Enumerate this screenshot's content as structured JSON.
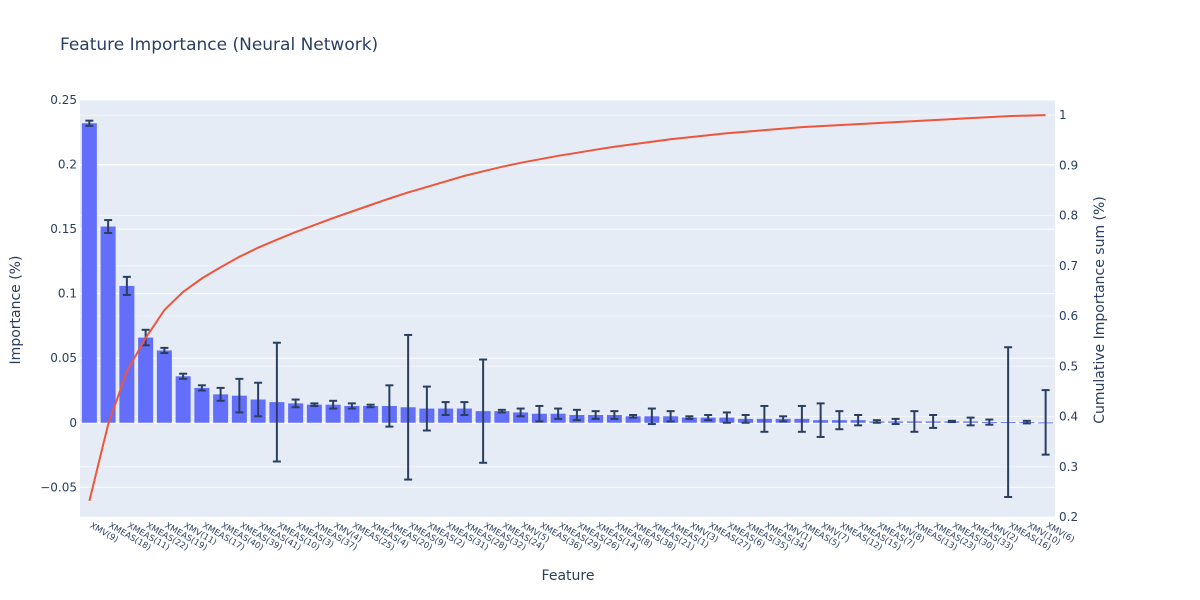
{
  "chart_data": {
    "type": "bar",
    "title": "Feature Importance (Neural Network)",
    "xlabel": "Feature",
    "ylabel": "Importance (%)",
    "y2label": "Cumulative Importance sum (%)",
    "ylim": [
      -0.073,
      0.25
    ],
    "y2lim": [
      0.2,
      1.03
    ],
    "yticks": [
      -0.05,
      0,
      0.05,
      0.1,
      0.15,
      0.2,
      0.25
    ],
    "ytick_labels": [
      "−0.05",
      "0",
      "0.05",
      "0.1",
      "0.15",
      "0.2",
      "0.25"
    ],
    "y2ticks": [
      0.2,
      0.3,
      0.4,
      0.5,
      0.6,
      0.7,
      0.8,
      0.9,
      1
    ],
    "y2tick_labels": [
      "0.2",
      "0.3",
      "0.4",
      "0.5",
      "0.6",
      "0.7",
      "0.8",
      "0.9",
      "1"
    ],
    "grid": true,
    "categories": [
      "XMV(9)",
      "XMEAS(18)",
      "XMEAS(11)",
      "XMEAS(22)",
      "XMEAS(19)",
      "XMV(11)",
      "XMEAS(17)",
      "XMEAS(40)",
      "XMEAS(39)",
      "XMEAS(41)",
      "XMEAS(10)",
      "XMEAS(3)",
      "XMEAS(37)",
      "XMV(4)",
      "XMEAS(25)",
      "XMEAS(4)",
      "XMEAS(20)",
      "XMEAS(9)",
      "XMEAS(2)",
      "XMEAS(31)",
      "XMEAS(28)",
      "XMEAS(32)",
      "XMEAS(24)",
      "XMV(5)",
      "XMEAS(36)",
      "XMEAS(29)",
      "XMEAS(26)",
      "XMEAS(14)",
      "XMEAS(8)",
      "XMEAS(38)",
      "XMEAS(21)",
      "XMEAS(1)",
      "XMV(3)",
      "XMEAS(27)",
      "XMEAS(6)",
      "XMEAS(35)",
      "XMEAS(34)",
      "XMV(1)",
      "XMEAS(5)",
      "XMV(7)",
      "XMEAS(12)",
      "XMEAS(15)",
      "XMEAS(7)",
      "XMV(8)",
      "XMEAS(13)",
      "XMEAS(23)",
      "XMEAS(30)",
      "XMEAS(33)",
      "XMV(2)",
      "XMEAS(16)",
      "XMV(10)",
      "XMV(6)"
    ],
    "series": [
      {
        "type": "bar",
        "color": "#636efa",
        "values": [
          0.232,
          0.152,
          0.106,
          0.066,
          0.056,
          0.036,
          0.027,
          0.022,
          0.021,
          0.018,
          0.016,
          0.015,
          0.014,
          0.014,
          0.013,
          0.013,
          0.013,
          0.012,
          0.011,
          0.011,
          0.011,
          0.009,
          0.009,
          0.008,
          0.007,
          0.007,
          0.006,
          0.006,
          0.006,
          0.005,
          0.005,
          0.005,
          0.004,
          0.004,
          0.004,
          0.003,
          0.003,
          0.003,
          0.003,
          0.002,
          0.002,
          0.002,
          0.001,
          0.001,
          0.001,
          0.001,
          0.001,
          0.001,
          0.0005,
          0.0005,
          0.0005,
          0.0003
        ],
        "error": [
          0.002,
          0.005,
          0.007,
          0.006,
          0.002,
          0.002,
          0.002,
          0.005,
          0.013,
          0.013,
          0.046,
          0.003,
          0.001,
          0.003,
          0.002,
          0.001,
          0.016,
          0.056,
          0.017,
          0.005,
          0.005,
          0.04,
          0.001,
          0.003,
          0.006,
          0.004,
          0.004,
          0.003,
          0.003,
          0.001,
          0.006,
          0.004,
          0.001,
          0.002,
          0.004,
          0.003,
          0.01,
          0.002,
          0.01,
          0.013,
          0.007,
          0.004,
          0.001,
          0.002,
          0.008,
          0.005,
          0.0005,
          0.003,
          0.002,
          0.058,
          0.001,
          0.025
        ]
      },
      {
        "type": "line",
        "axis": "right",
        "color": "#ef553b",
        "values": [
          0.232,
          0.384,
          0.49,
          0.556,
          0.612,
          0.648,
          0.675,
          0.697,
          0.718,
          0.736,
          0.752,
          0.767,
          0.781,
          0.795,
          0.808,
          0.821,
          0.834,
          0.846,
          0.857,
          0.868,
          0.879,
          0.888,
          0.897,
          0.905,
          0.912,
          0.919,
          0.925,
          0.931,
          0.937,
          0.942,
          0.947,
          0.952,
          0.956,
          0.96,
          0.964,
          0.967,
          0.97,
          0.973,
          0.976,
          0.978,
          0.98,
          0.982,
          0.984,
          0.986,
          0.988,
          0.99,
          0.992,
          0.994,
          0.996,
          0.998,
          0.999,
          1.0
        ]
      }
    ]
  }
}
